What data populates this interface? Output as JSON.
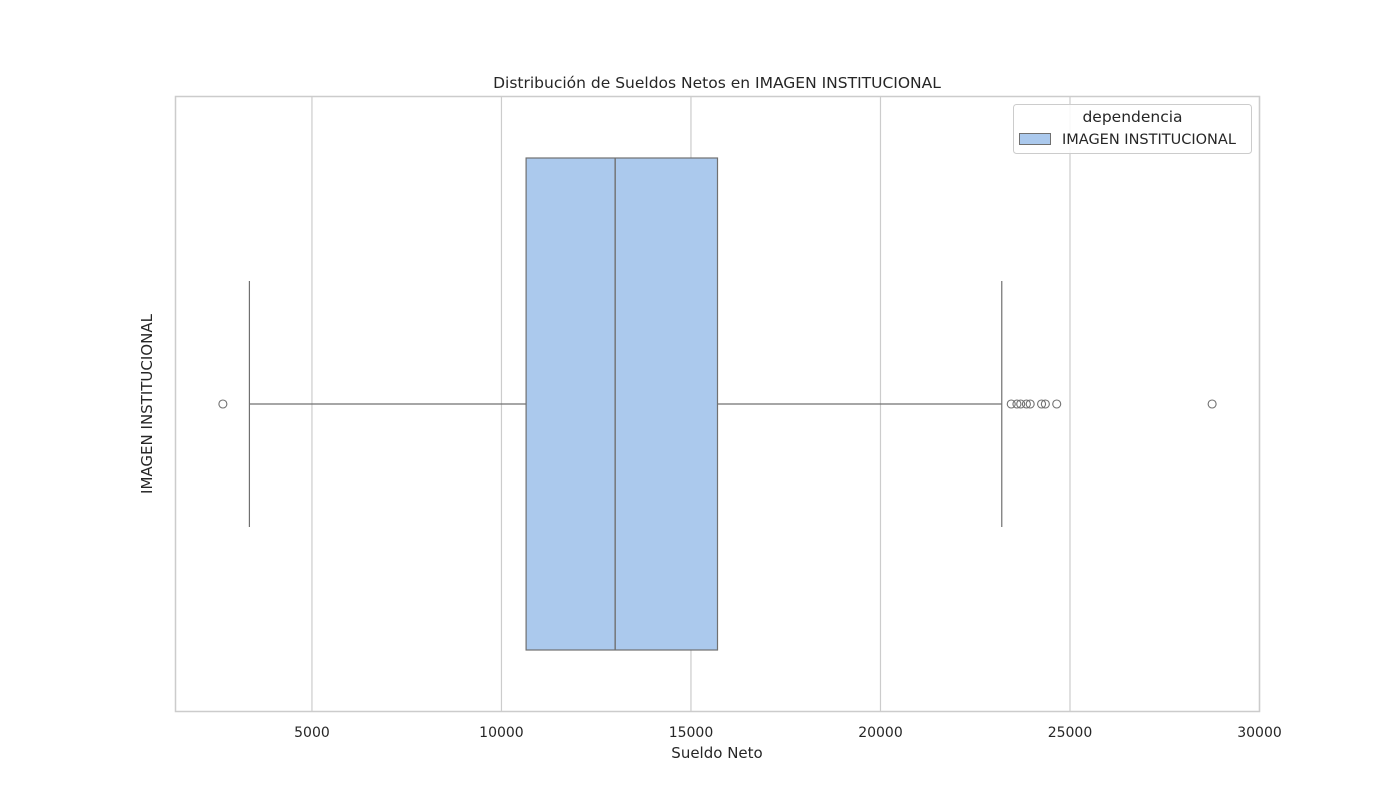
{
  "chart_data": {
    "type": "boxplot",
    "orientation": "horizontal",
    "title": "Distribución de Sueldos Netos en IMAGEN INSTITUCIONAL",
    "xlabel": "Sueldo Neto",
    "ylabel": "IMAGEN INSTITUCIONAL",
    "xlim": [
      1400,
      30000
    ],
    "xticks": [
      5000,
      10000,
      15000,
      20000,
      25000,
      30000
    ],
    "xtick_labels": [
      "5000",
      "10000",
      "15000",
      "20000",
      "25000",
      "30000"
    ],
    "grid": "x",
    "legend": {
      "title": "dependencia",
      "placement": "top-right",
      "entries": [
        "IMAGEN INSTITUCIONAL"
      ]
    },
    "series": [
      {
        "name": "IMAGEN INSTITUCIONAL",
        "color": "#abc9ed",
        "edge_color": "#707070",
        "whisker_low": 3350,
        "q1": 10650,
        "median": 13000,
        "q3": 15700,
        "whisker_high": 23200,
        "outliers": [
          2650,
          23450,
          23600,
          23700,
          23850,
          23950,
          24250,
          24350,
          24650,
          28750
        ]
      }
    ]
  }
}
